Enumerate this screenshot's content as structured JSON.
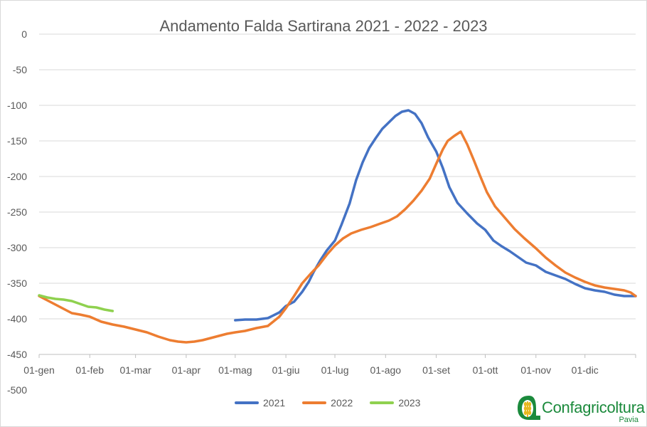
{
  "chart_data": {
    "type": "line",
    "title": "Andamento Falda Sartirana 2021 - 2022 - 2023",
    "xlabel": "",
    "ylabel": "",
    "x_tick_labels": [
      "01-gen",
      "01-feb",
      "01-mar",
      "01-apr",
      "01-mag",
      "01-giu",
      "01-lug",
      "01-ago",
      "01-set",
      "01-ott",
      "01-nov",
      "01-dic"
    ],
    "x_tick_days": [
      0,
      31,
      59,
      90,
      120,
      151,
      181,
      212,
      243,
      273,
      304,
      334
    ],
    "xlim": [
      0,
      365
    ],
    "y_tick_labels": [
      "0",
      "-50",
      "-100",
      "-150",
      "-200",
      "-250",
      "-300",
      "-350",
      "-400",
      "-450",
      "-500"
    ],
    "y_ticks": [
      0,
      -50,
      -100,
      -150,
      -200,
      -250,
      -300,
      -350,
      -400,
      -450,
      -500
    ],
    "ylim": [
      -500,
      0
    ],
    "grid": true,
    "legend": "bottom",
    "series": [
      {
        "name": "2021",
        "color": "#4472c4",
        "x": [
          120,
          126,
          133,
          140,
          147,
          151,
          156,
          161,
          165,
          168,
          172,
          176,
          181,
          185,
          190,
          194,
          198,
          202,
          206,
          210,
          214,
          218,
          222,
          226,
          230,
          234,
          238,
          243,
          247,
          251,
          256,
          262,
          268,
          273,
          278,
          283,
          288,
          293,
          298,
          304,
          310,
          316,
          322,
          328,
          334,
          340,
          346,
          352,
          358,
          362,
          365
        ],
        "y": [
          -402,
          -401,
          -401,
          -399,
          -391,
          -382,
          -376,
          -362,
          -348,
          -334,
          -318,
          -304,
          -290,
          -268,
          -238,
          -205,
          -180,
          -160,
          -146,
          -133,
          -124,
          -115,
          -109,
          -107,
          -112,
          -125,
          -145,
          -165,
          -188,
          -215,
          -237,
          -252,
          -266,
          -275,
          -290,
          -298,
          -305,
          -313,
          -321,
          -325,
          -334,
          -339,
          -344,
          -351,
          -357,
          -360,
          -362,
          -366,
          -368,
          -368,
          -368
        ]
      },
      {
        "name": "2022",
        "color": "#ed7d31",
        "x": [
          0,
          5,
          10,
          15,
          20,
          25,
          31,
          38,
          45,
          52,
          59,
          66,
          73,
          80,
          85,
          90,
          95,
          100,
          105,
          110,
          115,
          120,
          126,
          133,
          140,
          147,
          151,
          156,
          161,
          166,
          171,
          176,
          181,
          186,
          191,
          197,
          203,
          209,
          214,
          219,
          224,
          229,
          234,
          239,
          243,
          247,
          250,
          254,
          258,
          262,
          266,
          270,
          274,
          279,
          285,
          291,
          297,
          304,
          310,
          316,
          322,
          328,
          334,
          340,
          346,
          352,
          358,
          362,
          365
        ],
        "y": [
          -368,
          -374,
          -380,
          -386,
          -392,
          -394,
          -397,
          -404,
          -408,
          -411,
          -415,
          -419,
          -425,
          -430,
          -432,
          -433,
          -432,
          -430,
          -427,
          -424,
          -421,
          -419,
          -417,
          -413,
          -410,
          -397,
          -385,
          -368,
          -350,
          -337,
          -325,
          -310,
          -297,
          -287,
          -280,
          -275,
          -271,
          -266,
          -262,
          -256,
          -246,
          -234,
          -220,
          -203,
          -182,
          -162,
          -150,
          -143,
          -137,
          -155,
          -177,
          -200,
          -222,
          -242,
          -258,
          -274,
          -287,
          -301,
          -314,
          -325,
          -335,
          -342,
          -348,
          -353,
          -356,
          -358,
          -360,
          -363,
          -368
        ]
      },
      {
        "name": "2023",
        "color": "#8fd14f",
        "x": [
          0,
          5,
          10,
          15,
          20,
          25,
          30,
          35,
          40,
          45
        ],
        "y": [
          -367,
          -370,
          -372,
          -373,
          -375,
          -379,
          -383,
          -384,
          -387,
          -389
        ]
      }
    ]
  },
  "logo": {
    "name": "Confagricoltura",
    "sub": "Pavia",
    "color": "#1b8a3c",
    "icon": "wheat-icon"
  }
}
